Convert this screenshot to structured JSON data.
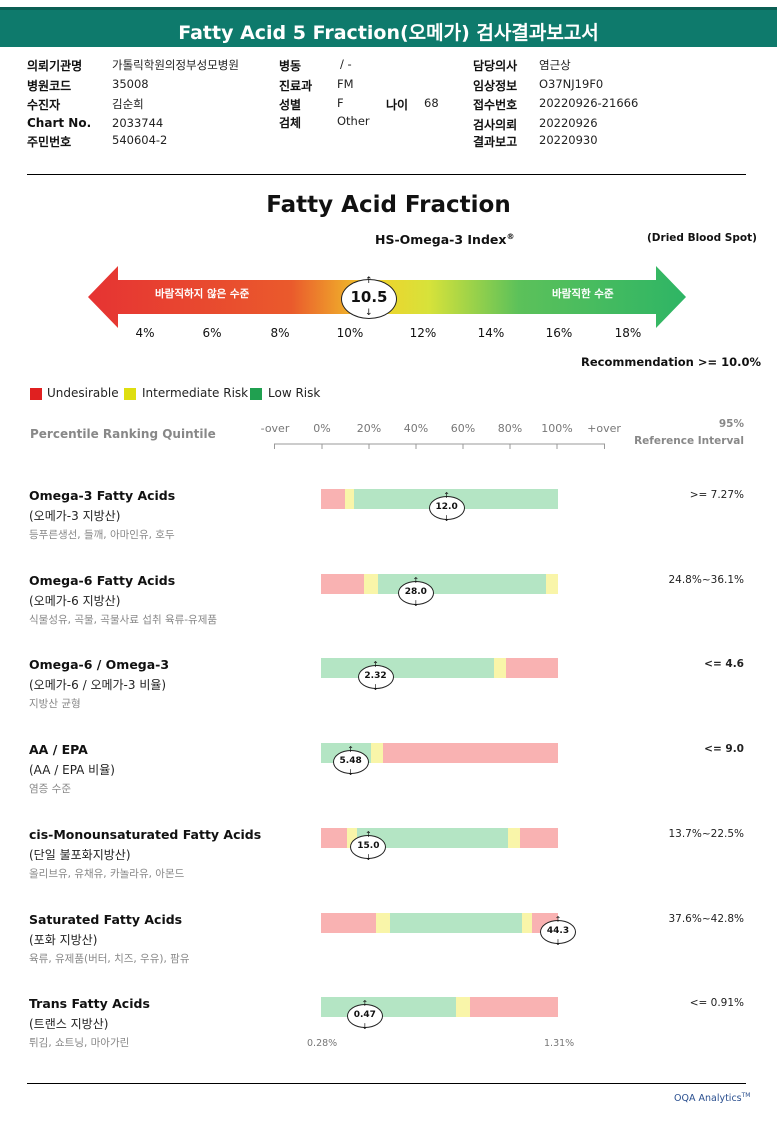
{
  "header": {
    "title": "Fatty Acid 5 Fraction(오메가) 검사결과보고서"
  },
  "patient_info": {
    "institution_label": "의뢰기관명",
    "institution_value": "가톨릭학원의정부성모병원",
    "hospital_code_label": "병원코드",
    "hospital_code_value": "35008",
    "examinee_label": "수진자",
    "examinee_value": "김순희",
    "chart_label": "Chart No.",
    "chart_value": "2033744",
    "rrn_label": "주민번호",
    "rrn_value": "540604-2",
    "ward_label": "병동",
    "ward_value": "/ -",
    "dept_label": "진료과",
    "dept_value": "FM",
    "sex_label": "성별",
    "sex_value": "F",
    "age_label": "나이",
    "age_value": "68",
    "specimen_label": "검체",
    "specimen_value": "Other",
    "doctor_label": "담당의사",
    "doctor_value": "염근상",
    "clinical_label": "임상정보",
    "clinical_value": "O37NJ19F0",
    "receipt_label": "접수번호",
    "receipt_value": "20220926-21666",
    "request_label": "검사의뢰",
    "request_value": "20220926",
    "report_label": "결과보고",
    "report_value": "20220930"
  },
  "index_section": {
    "title": "Fatty Acid Fraction",
    "subtitle": "HS-Omega-3 Index",
    "subtitle_mark": "®",
    "specimen_note": "(Dried Blood Spot)",
    "left_label": "바람직하지 않은 수준",
    "right_label": "바람직한 수준",
    "scale": [
      "4%",
      "6%",
      "8%",
      "10%",
      "12%",
      "14%",
      "16%",
      "18%"
    ],
    "value": "10.5",
    "value_number": 10.5,
    "recommendation": "Recommendation  >= 10.0%",
    "colors": {
      "red": "#e63333",
      "yellow": "#e8e83a",
      "green": "#2eb565"
    }
  },
  "legend": [
    {
      "label": "Undesirable",
      "color": "#e02020"
    },
    {
      "label": "Intermediate Risk",
      "color": "#dede10"
    },
    {
      "label": "Low Risk",
      "color": "#20a050"
    }
  ],
  "percentile": {
    "label": "Percentile Ranking Quintile",
    "ticks": [
      "-over",
      "0%",
      "20%",
      "40%",
      "60%",
      "80%",
      "100%",
      "+over"
    ],
    "ref_head_1": "95%",
    "ref_head_2": "Reference Interval"
  },
  "fatty_acids": [
    {
      "name": "Omega-3 Fatty Acids",
      "korean": "(오메가-3 지방산)",
      "foods": "등푸른생선, 들깨, 아마인유, 호두",
      "value": "12.0",
      "position_pct": 53.0,
      "reference": ">= 7.27%",
      "ref_bold": false,
      "segments": [
        {
          "c": "red",
          "w": 10
        },
        {
          "c": "yellow",
          "w": 4
        },
        {
          "c": "green",
          "w": 86
        }
      ]
    },
    {
      "name": "Omega-6 Fatty Acids",
      "korean": "(오메가-6 지방산)",
      "foods": "식물성유, 곡물, 곡물사료 섭취 육류-유제품",
      "value": "28.0",
      "position_pct": 40.0,
      "reference": "24.8%~36.1%",
      "ref_bold": false,
      "segments": [
        {
          "c": "red",
          "w": 18
        },
        {
          "c": "yellow",
          "w": 6
        },
        {
          "c": "green",
          "w": 71
        },
        {
          "c": "yellow",
          "w": 5
        }
      ]
    },
    {
      "name": "Omega-6 / Omega-3",
      "korean": "(오메가-6 / 오메가-3 비율)",
      "foods": "지방산 균형",
      "value": "2.32",
      "position_pct": 23.0,
      "reference": "<= 4.6",
      "ref_bold": true,
      "segments": [
        {
          "c": "green",
          "w": 73
        },
        {
          "c": "yellow",
          "w": 5
        },
        {
          "c": "red",
          "w": 22
        }
      ]
    },
    {
      "name": "AA / EPA",
      "korean": "(AA / EPA 비율)",
      "foods": "염증 수준",
      "value": "5.48",
      "position_pct": 12.5,
      "reference": "<= 9.0",
      "ref_bold": true,
      "segments": [
        {
          "c": "green",
          "w": 21
        },
        {
          "c": "yellow",
          "w": 5
        },
        {
          "c": "red",
          "w": 74
        }
      ]
    },
    {
      "name": "cis-Monounsaturated Fatty Acids",
      "korean": "(단일 불포화지방산)",
      "foods": "올리브유, 유채유, 카놀라유, 아몬드",
      "value": "15.0",
      "position_pct": 20.0,
      "reference": "13.7%~22.5%",
      "ref_bold": false,
      "segments": [
        {
          "c": "red",
          "w": 11
        },
        {
          "c": "yellow",
          "w": 4
        },
        {
          "c": "green",
          "w": 64
        },
        {
          "c": "yellow",
          "w": 5
        },
        {
          "c": "red",
          "w": 16
        }
      ]
    },
    {
      "name": "Saturated Fatty Acids",
      "korean": "(포화 지방산)",
      "foods": "육류, 유제품(버터, 치즈, 우유), 팜유",
      "value": "44.3",
      "position_pct": 100.0,
      "reference": "37.6%~42.8%",
      "ref_bold": false,
      "segments": [
        {
          "c": "red",
          "w": 23
        },
        {
          "c": "yellow",
          "w": 6
        },
        {
          "c": "green",
          "w": 56
        },
        {
          "c": "yellow",
          "w": 4
        },
        {
          "c": "red",
          "w": 11
        }
      ]
    },
    {
      "name": "Trans Fatty Acids",
      "korean": "(트랜스 지방산)",
      "foods": "튀김, 쇼트닝, 마아가린",
      "value": "0.47",
      "position_pct": 18.5,
      "reference": "<= 0.91%",
      "ref_bold": false,
      "segments": [
        {
          "c": "green",
          "w": 57
        },
        {
          "c": "yellow",
          "w": 6
        },
        {
          "c": "red",
          "w": 37
        }
      ]
    }
  ],
  "trans_range": {
    "min": "0.28%",
    "max": "1.31%"
  },
  "footer": {
    "brand": "OQA Analytics",
    "brand_mark": "TM"
  }
}
